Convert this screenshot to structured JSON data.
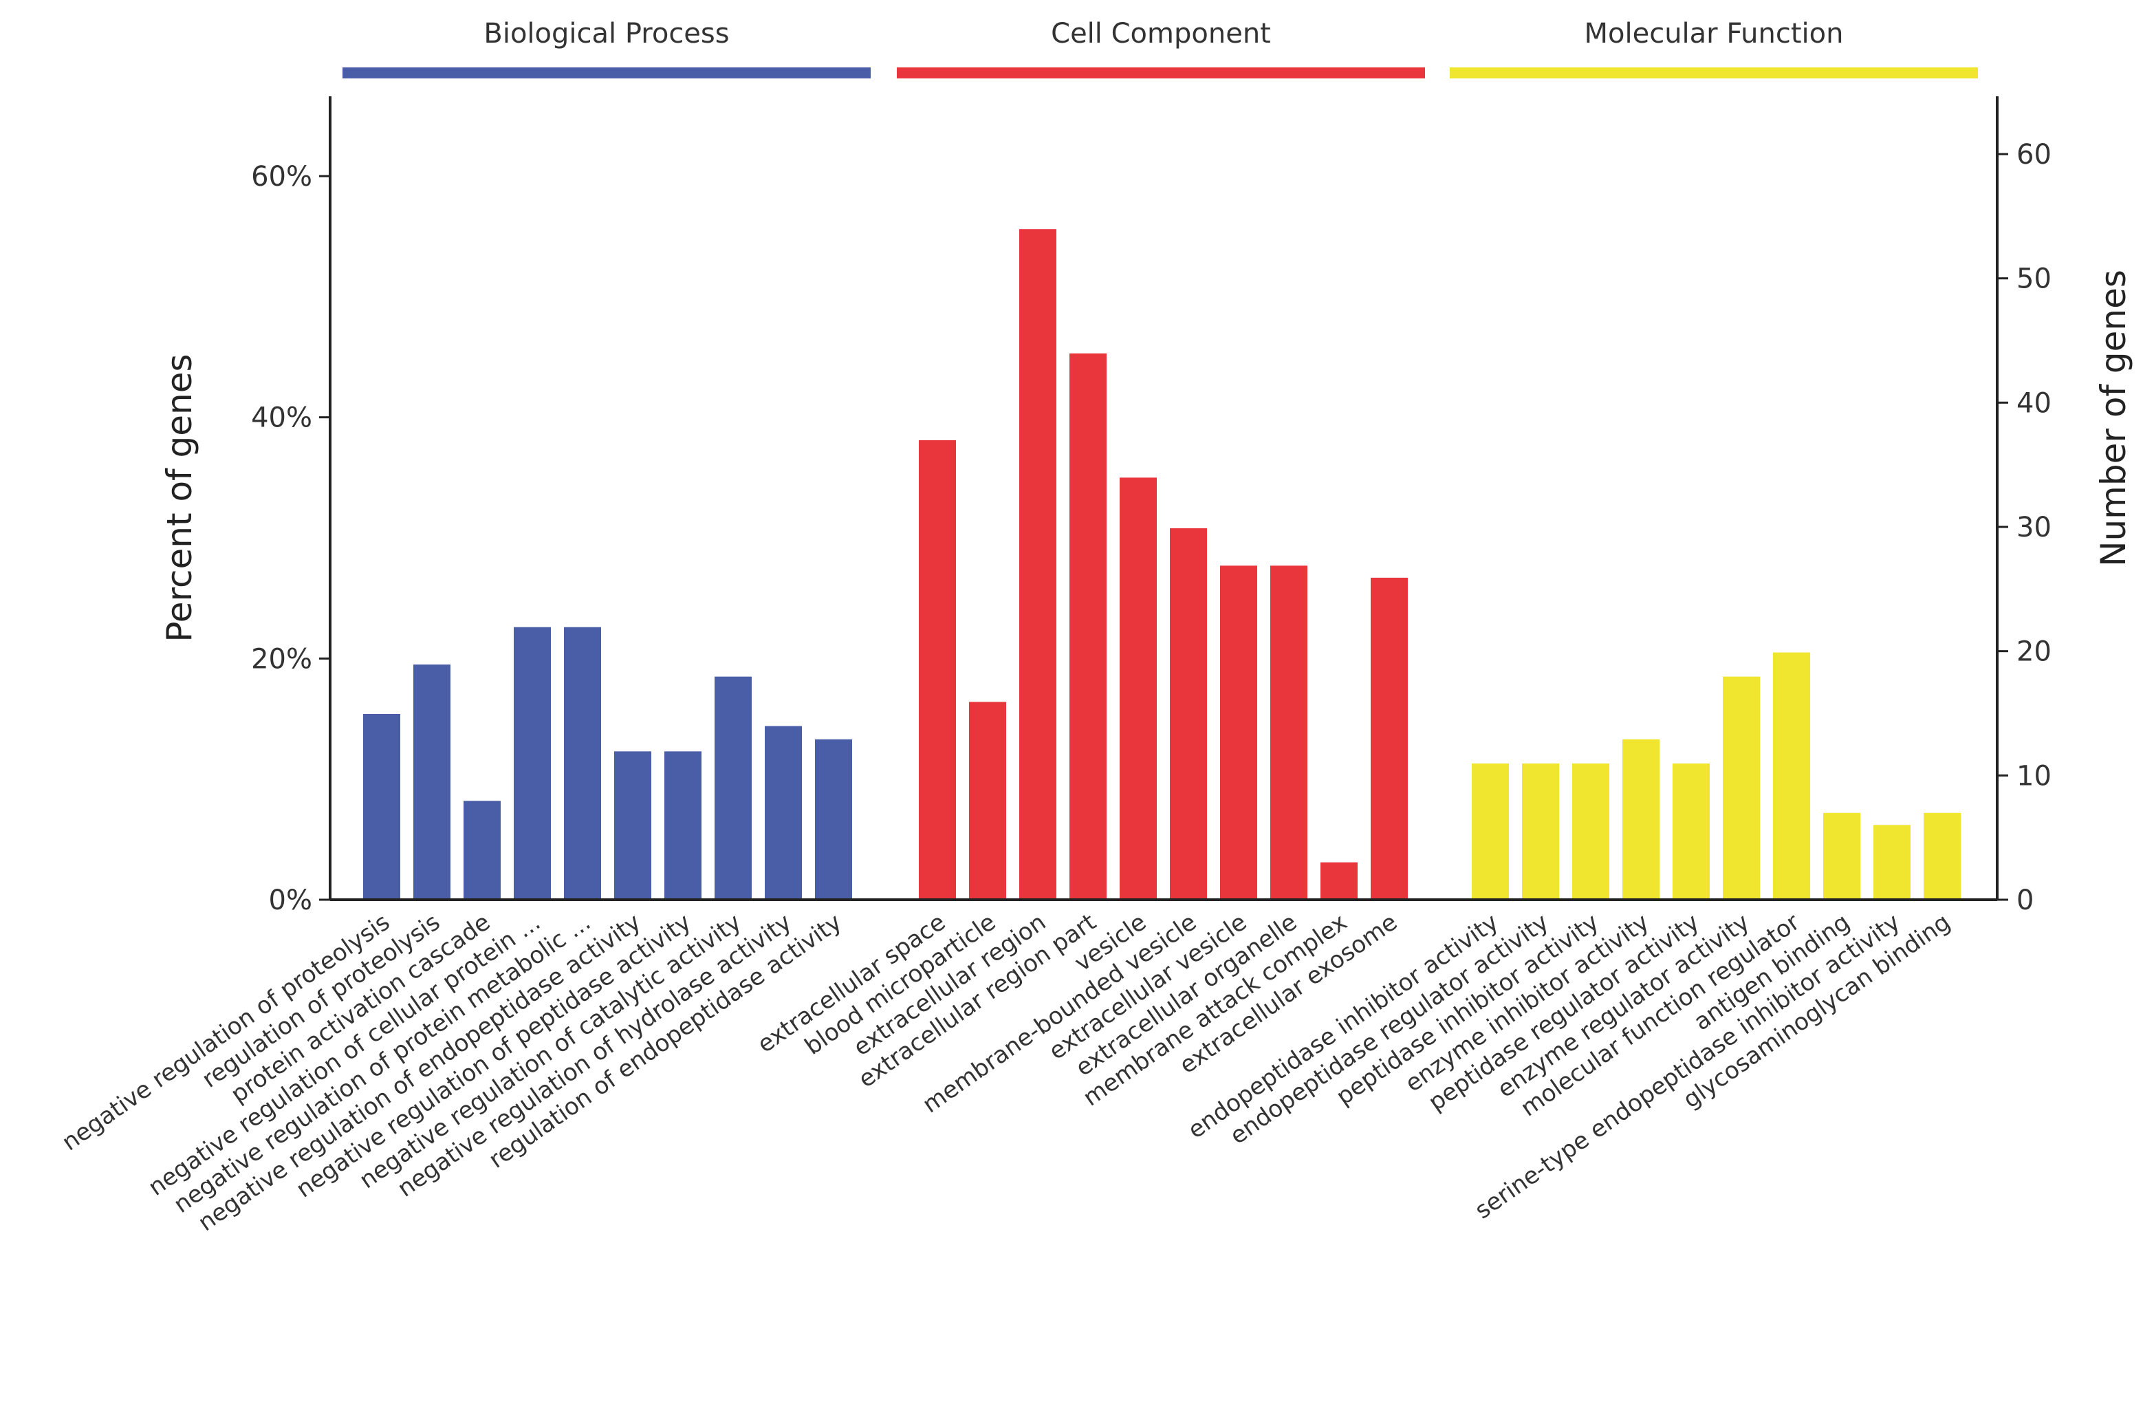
{
  "chart_data": {
    "type": "bar",
    "title": "",
    "xlabel": "",
    "ylabel": "Percent of genes",
    "y2label": "Number of genes",
    "ylim_percent": [
      0,
      66
    ],
    "ylim_count": [
      0,
      64.4
    ],
    "grid": false,
    "legend": "none",
    "y_ticks": [
      {
        "value": 0,
        "label": "0%"
      },
      {
        "value": 20,
        "label": "20%"
      },
      {
        "value": 40,
        "label": "40%"
      },
      {
        "value": 60,
        "label": "60%"
      }
    ],
    "y2_ticks": [
      {
        "value": 0,
        "label": "0"
      },
      {
        "value": 10,
        "label": "10"
      },
      {
        "value": 20,
        "label": "20"
      },
      {
        "value": 30,
        "label": "30"
      },
      {
        "value": 40,
        "label": "40"
      },
      {
        "value": 50,
        "label": "50"
      },
      {
        "value": 60,
        "label": "60"
      }
    ],
    "groups": [
      {
        "name": "Biological Process",
        "color": "#4a5ea8",
        "categories": [
          "negative regulation of proteolysis",
          "regulation of proteolysis",
          "protein activation cascade",
          "negative regulation of cellular protein ...",
          "negative regulation of protein metabolic ...",
          "negative regulation of endopeptidase activity",
          "negative regulation of peptidase activity",
          "negative regulation of catalytic activity",
          "negative regulation of hydrolase activity",
          "regulation of endopeptidase activity"
        ],
        "values_percent": [
          15.4,
          19.5,
          8.2,
          22.6,
          22.6,
          12.3,
          12.3,
          18.5,
          14.4,
          13.3
        ],
        "values_count": [
          15,
          19,
          8,
          22,
          22,
          12,
          12,
          18,
          14,
          13
        ]
      },
      {
        "name": "Cell Component",
        "color": "#e8363c",
        "categories": [
          "extracellular space",
          "blood microparticle",
          "extracellular region",
          "extracellular region part",
          "vesicle",
          "membrane-bounded vesicle",
          "extracellular vesicle",
          "extracellular organelle",
          "membrane attack complex",
          "extracellular exosome"
        ],
        "values_percent": [
          38.1,
          16.4,
          55.6,
          45.3,
          35.0,
          30.8,
          27.7,
          27.7,
          3.1,
          26.7
        ],
        "values_count": [
          37,
          16,
          54,
          44,
          34,
          30,
          27,
          27,
          3,
          26
        ]
      },
      {
        "name": "Molecular Function",
        "color": "#f0e630",
        "categories": [
          "endopeptidase inhibitor activity",
          "endopeptidase regulator activity",
          "peptidase inhibitor activity",
          "enzyme inhibitor activity",
          "peptidase regulator activity",
          "enzyme regulator activity",
          "molecular function regulator",
          "antigen binding",
          "serine-type endopeptidase inhibitor activity",
          "glycosaminoglycan binding"
        ],
        "values_percent": [
          11.3,
          11.3,
          11.3,
          13.3,
          11.3,
          18.5,
          20.5,
          7.2,
          6.2,
          7.2
        ],
        "values_count": [
          11,
          11,
          11,
          13,
          11,
          18,
          20,
          7,
          6,
          7
        ]
      }
    ]
  }
}
